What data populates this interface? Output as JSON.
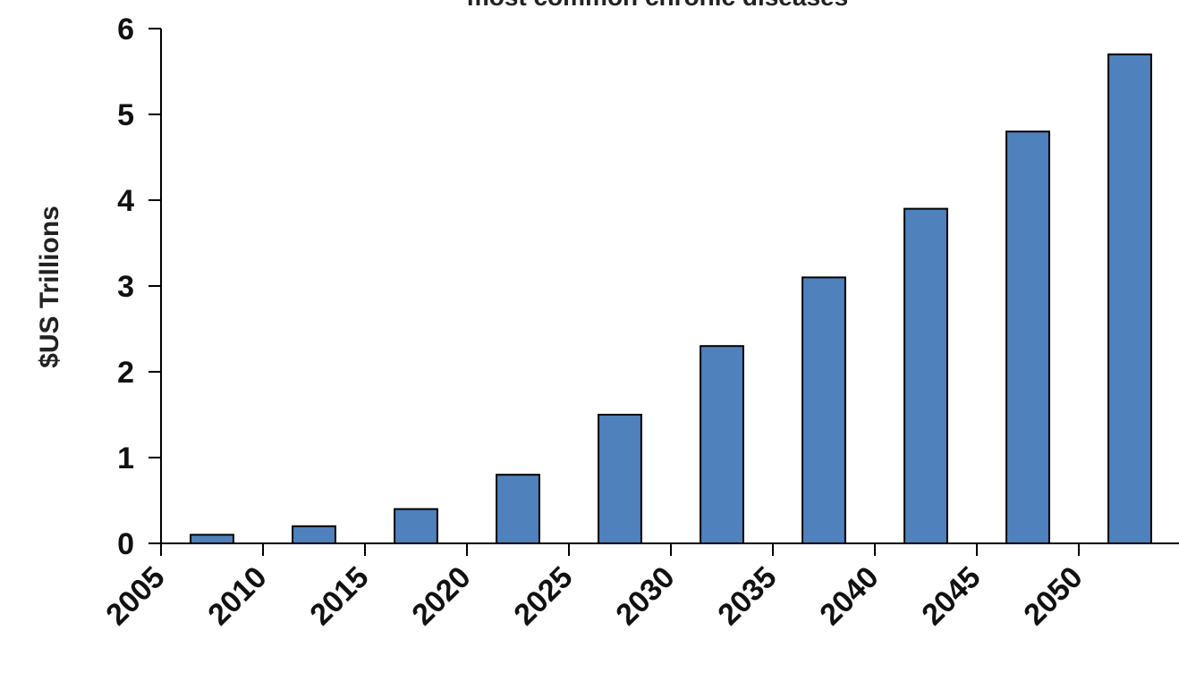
{
  "chart_data": {
    "type": "bar",
    "title": "most common chronic diseases",
    "xlabel": "",
    "ylabel": "$US Trillions",
    "categories": [
      "2005",
      "2010",
      "2015",
      "2020",
      "2025",
      "2030",
      "2035",
      "2040",
      "2045",
      "2050"
    ],
    "values": [
      0.1,
      0.2,
      0.4,
      0.8,
      1.5,
      2.3,
      3.1,
      3.9,
      4.8,
      5.7
    ],
    "ylim": [
      0,
      6
    ],
    "yticks": [
      0,
      1,
      2,
      3,
      4,
      5,
      6
    ],
    "grid": false,
    "colors": {
      "bar_fill": "#4f81bd",
      "bar_stroke": "#000000",
      "axis": "#000000"
    }
  }
}
